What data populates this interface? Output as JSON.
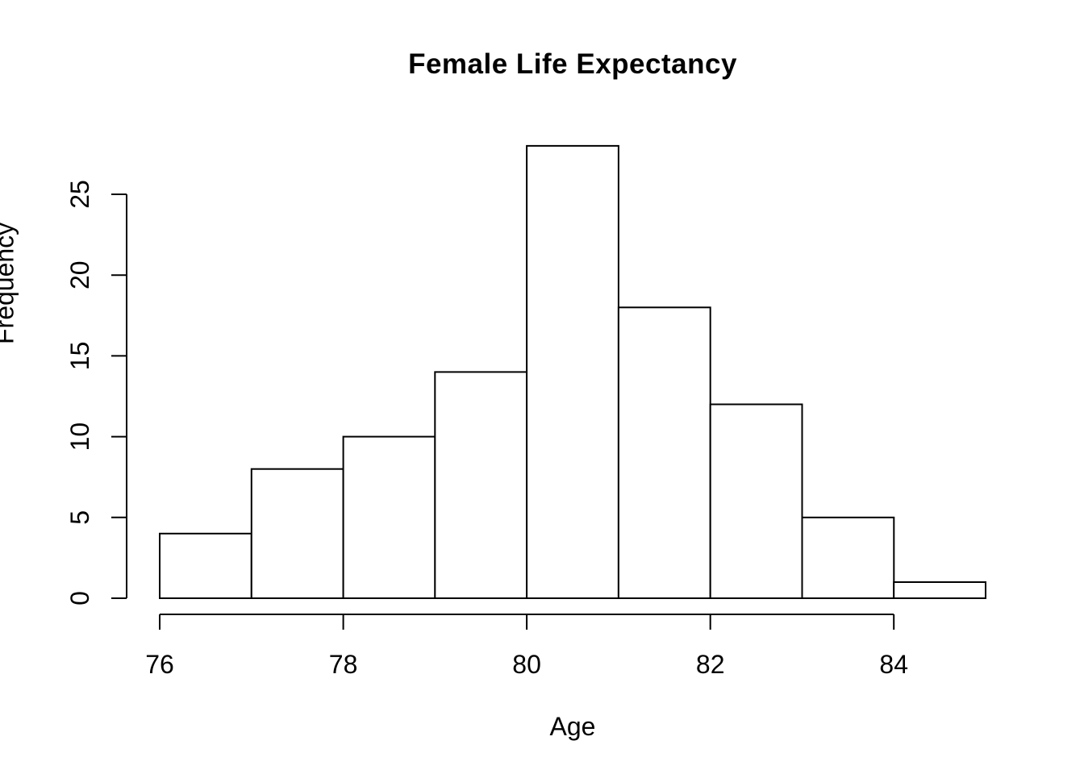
{
  "chart_data": {
    "type": "bar",
    "subtype": "histogram",
    "title": "Female Life Expectancy",
    "xlabel": "Age",
    "ylabel": "Frequency",
    "bin_edges": [
      76,
      77,
      78,
      79,
      80,
      81,
      82,
      83,
      84,
      85
    ],
    "values": [
      4,
      8,
      10,
      14,
      28,
      18,
      12,
      5,
      1
    ],
    "x_ticks": [
      76,
      78,
      80,
      82,
      84
    ],
    "y_ticks": [
      0,
      5,
      10,
      15,
      20,
      25
    ],
    "xlim": [
      76,
      85
    ],
    "ylim": [
      0,
      25
    ],
    "grid": false,
    "legend": null,
    "bar_fill": "#ffffff",
    "bar_stroke": "#000000",
    "axis_color": "#000000",
    "background": "#ffffff"
  }
}
